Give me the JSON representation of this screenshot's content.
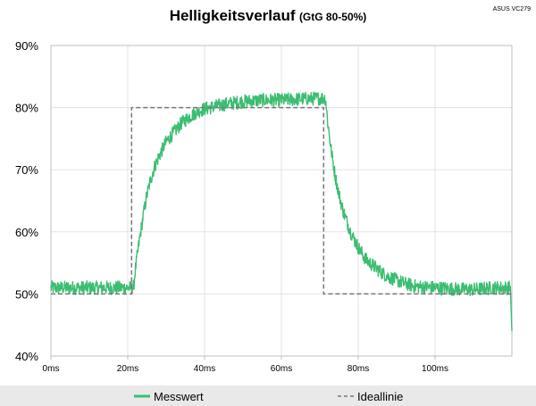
{
  "device_label": "ASUS VC279",
  "chart_data": {
    "type": "line",
    "title": "Helligkeitsverlauf",
    "subtitle": "(GtG 80-50%)",
    "xlabel": "",
    "ylabel": "",
    "xlim": [
      0,
      120
    ],
    "ylim": [
      40,
      90
    ],
    "x_ticks": [
      0,
      20,
      40,
      60,
      80,
      100
    ],
    "x_tick_labels": [
      "0ms",
      "20ms",
      "40ms",
      "60ms",
      "80ms",
      "100ms"
    ],
    "y_ticks": [
      40,
      50,
      60,
      70,
      80,
      90
    ],
    "y_tick_labels": [
      "40%",
      "50%",
      "60%",
      "70%",
      "80%",
      "90%"
    ],
    "grid": true,
    "legend_position": "bottom",
    "series": [
      {
        "name": "Messwert",
        "color": "#3cbd72",
        "style": "solid-noisy",
        "x": [
          0,
          5,
          10,
          15,
          20,
          21.5,
          22,
          23,
          24,
          25,
          26,
          27,
          28,
          30,
          32,
          34,
          36,
          38,
          40,
          45,
          50,
          55,
          60,
          65,
          70,
          71.5,
          72,
          73,
          74,
          75,
          76,
          78,
          80,
          82,
          84,
          86,
          88,
          90,
          92,
          95,
          100,
          105,
          110,
          115,
          119.6,
          120
        ],
        "values": [
          51,
          51,
          51,
          51,
          51,
          51,
          54,
          58.5,
          62.5,
          66,
          68.5,
          70.5,
          72,
          74.5,
          76,
          77.5,
          78.5,
          79.3,
          79.8,
          80.5,
          81,
          81.2,
          81.2,
          81.4,
          81.5,
          81.5,
          78,
          73,
          69,
          66,
          63.5,
          60,
          57.5,
          55.5,
          54.5,
          53.5,
          52.7,
          52.2,
          51.7,
          51.2,
          51,
          50.8,
          50.7,
          51,
          51,
          44
        ]
      },
      {
        "name": "Ideallinie",
        "color": "#777777",
        "style": "dashed",
        "x": [
          0,
          21,
          21,
          71,
          71,
          120
        ],
        "values": [
          50,
          50,
          80,
          80,
          50,
          50
        ]
      }
    ]
  }
}
